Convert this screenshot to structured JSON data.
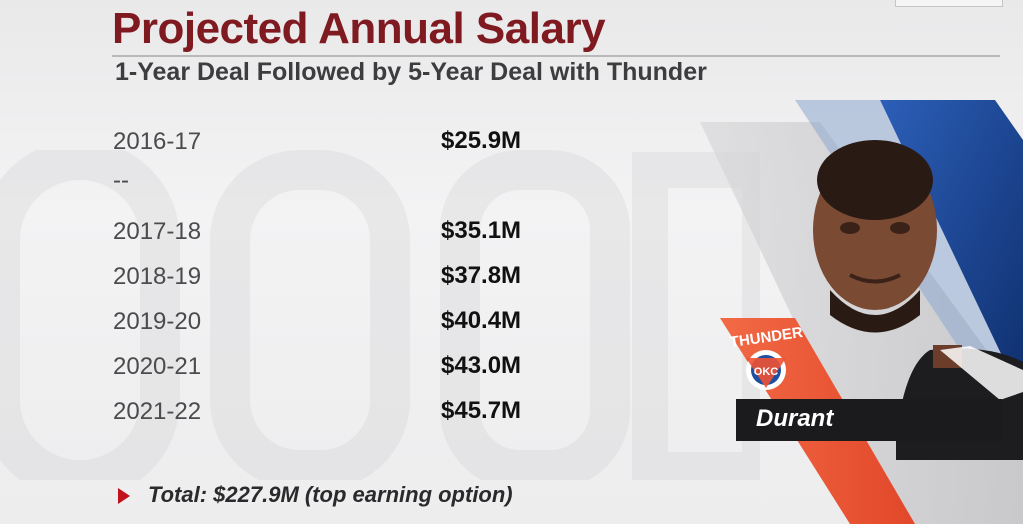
{
  "header": {
    "title": "Projected Annual Salary",
    "subtitle": "1-Year Deal Followed by 5-Year Deal with Thunder"
  },
  "salary_rows": [
    {
      "season": "2016-17",
      "salary": "$25.9M"
    },
    {
      "season": "--",
      "salary": ""
    },
    {
      "season": "2017-18",
      "salary": "$35.1M"
    },
    {
      "season": "2018-19",
      "salary": "$37.8M"
    },
    {
      "season": "2019-20",
      "salary": "$40.4M"
    },
    {
      "season": "2020-21",
      "salary": "$43.0M"
    },
    {
      "season": "2021-22",
      "salary": "$45.7M"
    }
  ],
  "footer": {
    "total_label": "Total: $227.9M (top earning option)"
  },
  "player": {
    "name": "Durant",
    "team_logo_text": "THUNDER",
    "team_logo_abbr": "OKC"
  },
  "colors": {
    "title": "#7e1a20",
    "accent_red": "#c1121c",
    "thunder_orange": "#f05133",
    "thunder_blue": "#1d4fa3",
    "name_bar": "#1b1b1d"
  }
}
